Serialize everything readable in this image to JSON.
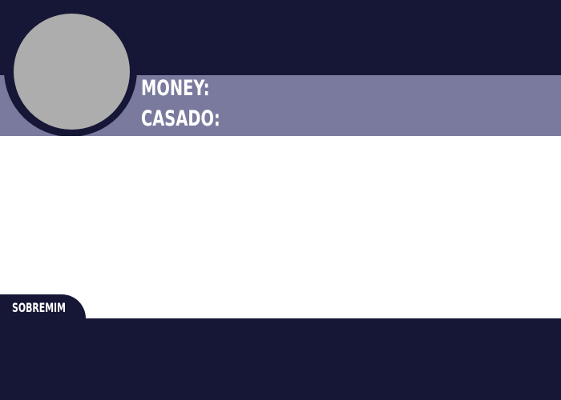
{
  "colors": {
    "dark_navy": "#161736",
    "lavender_band": "#7a7a9e",
    "avatar_placeholder": "#adadad",
    "content_background": "#ffffff",
    "text": "#ffffff"
  },
  "profile": {
    "money_label": "MONEY:",
    "casado_label": "CASADO:"
  },
  "about": {
    "tab_label": "SOBREMIM"
  }
}
